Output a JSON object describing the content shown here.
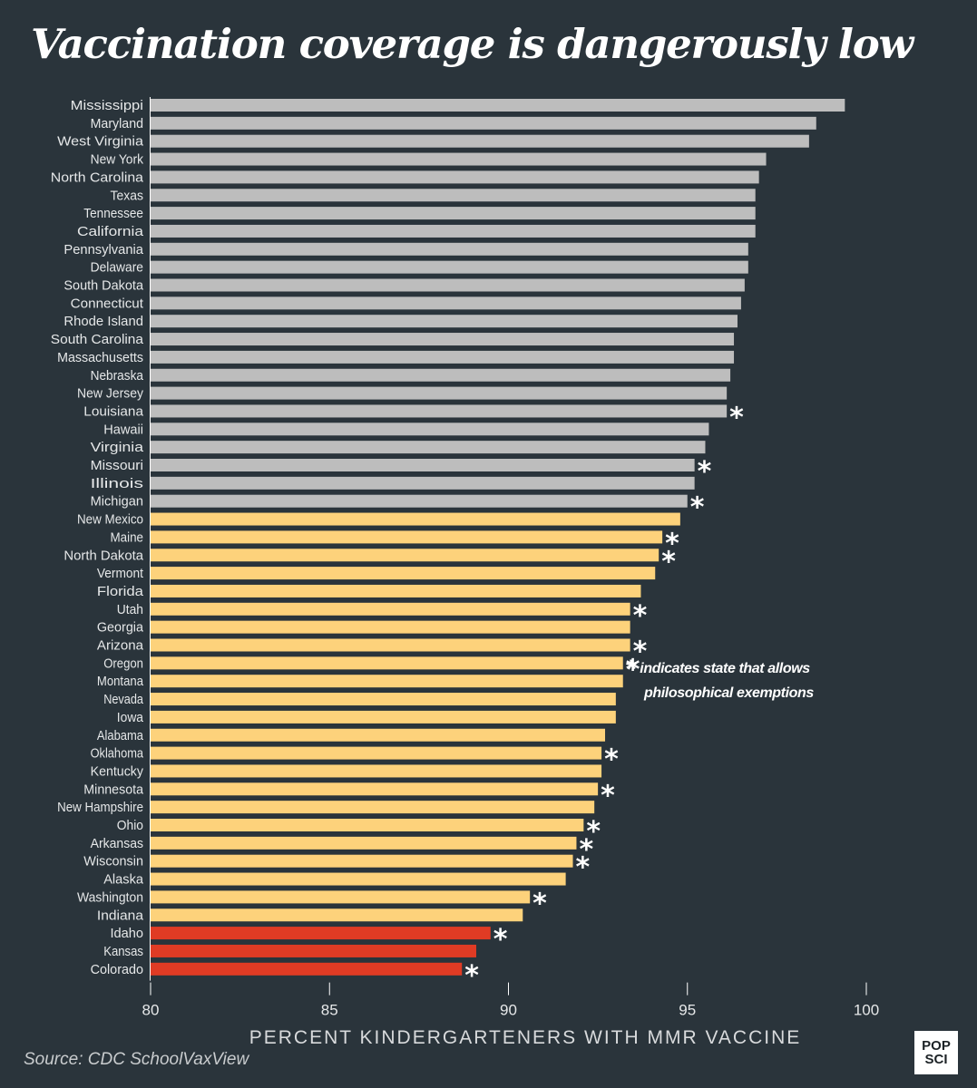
{
  "header": {
    "title": "Vaccination coverage is dangerously low"
  },
  "colors": {
    "background": "#2a343b",
    "high": "#bdbdbd",
    "middle": "#fdd27b",
    "low": "#e03b24",
    "text": "#ffffff"
  },
  "legend": {
    "star": "*",
    "line1": "indicates state that allows",
    "line2": "philosophical exemptions"
  },
  "source": "Source: CDC SchoolVaxView",
  "logo": {
    "line1": "POP",
    "line2": "SCI"
  },
  "chart_data": {
    "type": "bar",
    "orientation": "horizontal",
    "title": "Vaccination coverage is dangerously low",
    "xlabel": "PERCENT KINDERGARTENERS WITH MMR VACCINE",
    "ylabel": "",
    "xlim": [
      80,
      100
    ],
    "xticks": [
      80,
      85,
      90,
      95,
      100
    ],
    "grid": false,
    "bars": [
      {
        "label": "Mississippi",
        "value": 99.4,
        "group": "high",
        "exemption": false
      },
      {
        "label": "Maryland",
        "value": 98.6,
        "group": "high",
        "exemption": false
      },
      {
        "label": "West Virginia",
        "value": 98.4,
        "group": "high",
        "exemption": false
      },
      {
        "label": "New York",
        "value": 97.2,
        "group": "high",
        "exemption": false
      },
      {
        "label": "North Carolina",
        "value": 97.0,
        "group": "high",
        "exemption": false
      },
      {
        "label": "Texas",
        "value": 96.9,
        "group": "high",
        "exemption": false
      },
      {
        "label": "Tennessee",
        "value": 96.9,
        "group": "high",
        "exemption": false
      },
      {
        "label": "California",
        "value": 96.9,
        "group": "high",
        "exemption": false
      },
      {
        "label": "Pennsylvania",
        "value": 96.7,
        "group": "high",
        "exemption": false
      },
      {
        "label": "Delaware",
        "value": 96.7,
        "group": "high",
        "exemption": false
      },
      {
        "label": "South Dakota",
        "value": 96.6,
        "group": "high",
        "exemption": false
      },
      {
        "label": "Connecticut",
        "value": 96.5,
        "group": "high",
        "exemption": false
      },
      {
        "label": "Rhode Island",
        "value": 96.4,
        "group": "high",
        "exemption": false
      },
      {
        "label": "South Carolina",
        "value": 96.3,
        "group": "high",
        "exemption": false
      },
      {
        "label": "Massachusetts",
        "value": 96.3,
        "group": "high",
        "exemption": false
      },
      {
        "label": "Nebraska",
        "value": 96.2,
        "group": "high",
        "exemption": false
      },
      {
        "label": "New Jersey",
        "value": 96.1,
        "group": "high",
        "exemption": false
      },
      {
        "label": "Louisiana",
        "value": 96.1,
        "group": "high",
        "exemption": true
      },
      {
        "label": "Hawaii",
        "value": 95.6,
        "group": "high",
        "exemption": false
      },
      {
        "label": "Virginia",
        "value": 95.5,
        "group": "high",
        "exemption": false
      },
      {
        "label": "Missouri",
        "value": 95.2,
        "group": "high",
        "exemption": true
      },
      {
        "label": "Illinois",
        "value": 95.2,
        "group": "high",
        "exemption": false
      },
      {
        "label": "Michigan",
        "value": 95.0,
        "group": "high",
        "exemption": true
      },
      {
        "label": "New Mexico",
        "value": 94.8,
        "group": "middle",
        "exemption": false
      },
      {
        "label": "Maine",
        "value": 94.3,
        "group": "middle",
        "exemption": true
      },
      {
        "label": "North Dakota",
        "value": 94.2,
        "group": "middle",
        "exemption": true
      },
      {
        "label": "Vermont",
        "value": 94.1,
        "group": "middle",
        "exemption": false
      },
      {
        "label": "Florida",
        "value": 93.7,
        "group": "middle",
        "exemption": false
      },
      {
        "label": "Utah",
        "value": 93.4,
        "group": "middle",
        "exemption": true
      },
      {
        "label": "Georgia",
        "value": 93.4,
        "group": "middle",
        "exemption": false
      },
      {
        "label": "Arizona",
        "value": 93.4,
        "group": "middle",
        "exemption": true
      },
      {
        "label": "Oregon",
        "value": 93.2,
        "group": "middle",
        "exemption": true
      },
      {
        "label": "Montana",
        "value": 93.2,
        "group": "middle",
        "exemption": false
      },
      {
        "label": "Nevada",
        "value": 93.0,
        "group": "middle",
        "exemption": false
      },
      {
        "label": "Iowa",
        "value": 93.0,
        "group": "middle",
        "exemption": false
      },
      {
        "label": "Alabama",
        "value": 92.7,
        "group": "middle",
        "exemption": false
      },
      {
        "label": "Oklahoma",
        "value": 92.6,
        "group": "middle",
        "exemption": true
      },
      {
        "label": "Kentucky",
        "value": 92.6,
        "group": "middle",
        "exemption": false
      },
      {
        "label": "Minnesota",
        "value": 92.5,
        "group": "middle",
        "exemption": true
      },
      {
        "label": "New Hampshire",
        "value": 92.4,
        "group": "middle",
        "exemption": false
      },
      {
        "label": "Ohio",
        "value": 92.1,
        "group": "middle",
        "exemption": true
      },
      {
        "label": "Arkansas",
        "value": 91.9,
        "group": "middle",
        "exemption": true
      },
      {
        "label": "Wisconsin",
        "value": 91.8,
        "group": "middle",
        "exemption": true
      },
      {
        "label": "Alaska",
        "value": 91.6,
        "group": "middle",
        "exemption": false
      },
      {
        "label": "Washington",
        "value": 90.6,
        "group": "middle",
        "exemption": true
      },
      {
        "label": "Indiana",
        "value": 90.4,
        "group": "middle",
        "exemption": false
      },
      {
        "label": "Idaho",
        "value": 89.5,
        "group": "low",
        "exemption": true
      },
      {
        "label": "Kansas",
        "value": 89.1,
        "group": "low",
        "exemption": false
      },
      {
        "label": "Colorado",
        "value": 88.7,
        "group": "low",
        "exemption": true
      }
    ]
  }
}
